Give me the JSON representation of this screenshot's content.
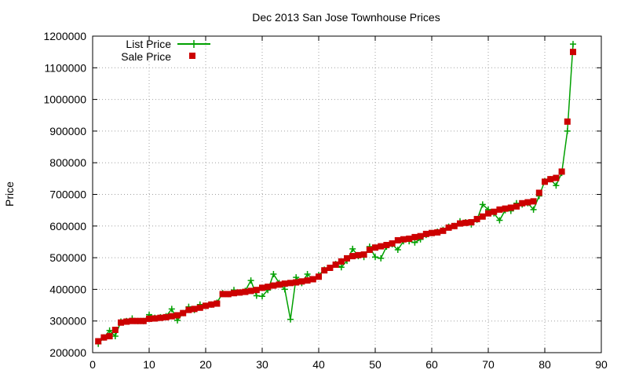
{
  "colors": {
    "list_price": "#00a000",
    "sale_price": "#cc0000"
  },
  "chart_data": {
    "type": "line",
    "title": "Dec 2013 San Jose Townhouse Prices",
    "xlabel": "",
    "ylabel": "Price",
    "xlim": [
      0,
      90
    ],
    "ylim": [
      200000,
      1200000
    ],
    "xticks": [
      0,
      10,
      20,
      30,
      40,
      50,
      60,
      70,
      80,
      90
    ],
    "yticks": [
      200000,
      300000,
      400000,
      500000,
      600000,
      700000,
      800000,
      900000,
      1000000,
      1100000,
      1200000
    ],
    "grid": true,
    "legend_position": "top-left",
    "x": [
      1,
      2,
      3,
      4,
      5,
      6,
      7,
      8,
      9,
      10,
      11,
      12,
      13,
      14,
      15,
      16,
      17,
      18,
      19,
      20,
      21,
      22,
      23,
      24,
      25,
      26,
      27,
      28,
      29,
      30,
      31,
      32,
      33,
      34,
      35,
      36,
      37,
      38,
      39,
      40,
      41,
      42,
      43,
      44,
      45,
      46,
      47,
      48,
      49,
      50,
      51,
      52,
      53,
      54,
      55,
      56,
      57,
      58,
      59,
      60,
      61,
      62,
      63,
      64,
      65,
      66,
      67,
      68,
      69,
      70,
      71,
      72,
      73,
      74,
      75,
      76,
      77,
      78,
      79,
      80,
      81,
      82,
      83,
      84,
      85
    ],
    "series": [
      {
        "name": "List Price",
        "style": "line-plus",
        "values": [
          228000,
          248000,
          270000,
          252000,
          298000,
          300000,
          308000,
          300000,
          300000,
          320000,
          310000,
          312000,
          315000,
          338000,
          302000,
          325000,
          345000,
          335000,
          352000,
          348000,
          352000,
          358000,
          388000,
          385000,
          398000,
          390000,
          395000,
          428000,
          380000,
          378000,
          398000,
          448000,
          420000,
          400000,
          305000,
          438000,
          420000,
          448000,
          432000,
          445000,
          462000,
          468000,
          480000,
          470000,
          490000,
          528000,
          505000,
          502000,
          535000,
          502000,
          498000,
          535000,
          542000,
          525000,
          552000,
          552000,
          548000,
          558000,
          572000,
          578000,
          582000,
          588000,
          598000,
          600000,
          615000,
          612000,
          605000,
          620000,
          668000,
          652000,
          640000,
          618000,
          650000,
          648000,
          672000,
          668000,
          672000,
          652000,
          695000,
          742000,
          748000,
          728000,
          768000,
          900000,
          1175000
        ]
      },
      {
        "name": "Sale Price",
        "style": "square",
        "values": [
          236000,
          248000,
          252000,
          272000,
          295000,
          298000,
          300000,
          300000,
          300000,
          307000,
          308000,
          310000,
          312000,
          315000,
          318000,
          325000,
          335000,
          338000,
          342000,
          348000,
          352000,
          355000,
          385000,
          385000,
          388000,
          390000,
          392000,
          395000,
          398000,
          405000,
          408000,
          412000,
          415000,
          418000,
          420000,
          422000,
          425000,
          428000,
          432000,
          440000,
          460000,
          468000,
          478000,
          488000,
          498000,
          505000,
          508000,
          510000,
          525000,
          532000,
          536000,
          540000,
          545000,
          555000,
          558000,
          560000,
          565000,
          568000,
          575000,
          578000,
          580000,
          585000,
          595000,
          600000,
          608000,
          610000,
          612000,
          622000,
          630000,
          640000,
          645000,
          652000,
          655000,
          658000,
          662000,
          672000,
          675000,
          678000,
          705000,
          740000,
          748000,
          752000,
          772000,
          930000,
          1150000
        ]
      }
    ]
  }
}
